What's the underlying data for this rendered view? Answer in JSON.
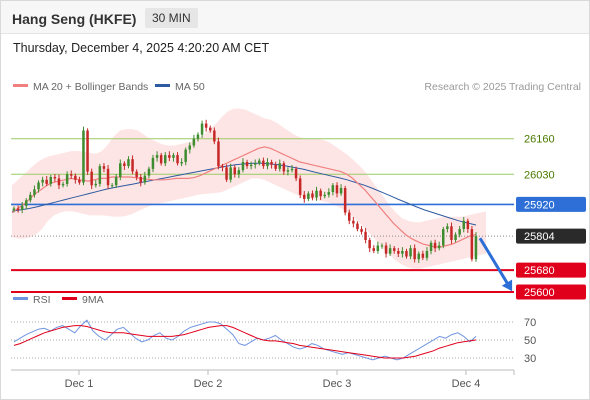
{
  "header": {
    "title": "Hang Seng (HKFE)",
    "timeframe": "30 MIN"
  },
  "datetime": "Thursday, December 4, 2025 4:20:20 AM CET",
  "legend": {
    "ma20_label": "MA 20 + Bollinger Bands",
    "ma50_label": "MA 50",
    "source": "Research © 2025 Trading Central",
    "rsi_label": "RSI",
    "rsi9_label": "9MA"
  },
  "colors": {
    "ma20": "#f08080",
    "ma50": "#2d5aa0",
    "band": "#fde1e1",
    "up": "#3d8c2f",
    "down": "#c62828",
    "pivot": "#2d6fd6",
    "resistance": "#9ccc65",
    "support": "#e0001b",
    "current": "#2a2a2a",
    "arrow": "#2d6fd6",
    "rsi": "#6f95e0",
    "rsi9": "#e0001b"
  },
  "chart_data": [
    {
      "type": "candlestick",
      "title": "Hang Seng (HKFE)",
      "timeframe": "30 MIN",
      "x_ticks": [
        "Dec 1",
        "Dec 2",
        "Dec 3",
        "Dec 4"
      ],
      "ylim": [
        25560,
        26210
      ],
      "levels": {
        "resistance": [
          26160,
          26030
        ],
        "pivot": 25920,
        "support": [
          25680,
          25600
        ],
        "last_price": 25804
      },
      "level_labels": {
        "r2": "26160",
        "r1": "26030",
        "pivot": "25920",
        "last": "25804",
        "s1": "25680",
        "s2": "25600"
      },
      "closes": [
        25905,
        25900,
        25915,
        25935,
        25955,
        25975,
        26000,
        26010,
        25995,
        26020,
        26015,
        25990,
        25995,
        26030,
        26025,
        26010,
        26000,
        26190,
        26040,
        25990,
        25995,
        26060,
        26050,
        25990,
        25990,
        26020,
        26070,
        26060,
        26085,
        26040,
        26020,
        26000,
        26025,
        26050,
        26090,
        26100,
        26070,
        26100,
        26090,
        26100,
        26070,
        26075,
        26120,
        26135,
        26160,
        26175,
        26215,
        26200,
        26190,
        26150,
        26060,
        26055,
        26010,
        26055,
        26030,
        26045,
        26075,
        26060,
        26065,
        26070,
        26080,
        26060,
        26075,
        26065,
        26050,
        26070,
        26040,
        26045,
        26050,
        26015,
        25955,
        25940,
        25960,
        25945,
        25970,
        25950,
        25955,
        25965,
        25990,
        25960,
        25980,
        25890,
        25860,
        25850,
        25830,
        25820,
        25790,
        25760,
        25750,
        25770,
        25770,
        25740,
        25760,
        25750,
        25740,
        25750,
        25730,
        25760,
        25720,
        25740,
        25725,
        25750,
        25780,
        25760,
        25770,
        25830,
        25840,
        25790,
        25810,
        25830,
        25860,
        25830,
        25720,
        25805
      ],
      "ma20": [
        25890,
        25905,
        25920,
        25940,
        25960,
        25975,
        25990,
        26000,
        26005,
        26010,
        26015,
        26012,
        26008,
        26005,
        26010,
        26015,
        26015,
        26020,
        26020,
        26020,
        26020,
        26018,
        26015,
        26012,
        26010,
        26010,
        26010,
        26012,
        26015,
        26015,
        26015,
        26018,
        26025,
        26035,
        26045,
        26055,
        26065,
        26075,
        26085,
        26095,
        26105,
        26115,
        26125,
        26130,
        26125,
        26115,
        26105,
        26095,
        26085,
        26075,
        26070,
        26065,
        26060,
        26055,
        26050,
        26045,
        26040,
        26030,
        26015,
        25995,
        25975,
        25950,
        25925,
        25900,
        25875,
        25850,
        25830,
        25810,
        25795,
        25785,
        25775,
        25770,
        25765,
        25765,
        25770,
        25775,
        25785,
        25795,
        25805,
        25810
      ],
      "bb_upper": [
        25990,
        26010,
        26030,
        26050,
        26070,
        26085,
        26095,
        26100,
        26105,
        26110,
        26115,
        26115,
        26112,
        26108,
        26105,
        26115,
        26140,
        26170,
        26190,
        26195,
        26195,
        26190,
        26175,
        26160,
        26150,
        26140,
        26135,
        26135,
        26140,
        26145,
        26150,
        26160,
        26175,
        26195,
        26215,
        26240,
        26260,
        26270,
        26270,
        26265,
        26255,
        26245,
        26235,
        26230,
        26220,
        26205,
        26190,
        26175,
        26165,
        26160,
        26160,
        26160,
        26155,
        26145,
        26130,
        26115,
        26100,
        26080,
        26060,
        26035,
        26005,
        25975,
        25945,
        25915,
        25890,
        25870,
        25860,
        25855,
        25855,
        25860,
        25865,
        25870,
        25875,
        25875,
        25875,
        25875,
        25880,
        25885,
        25890,
        25895
      ],
      "bb_lower": [
        25800,
        25795,
        25795,
        25800,
        25810,
        25830,
        25860,
        25880,
        25890,
        25895,
        25895,
        25890,
        25885,
        25880,
        25880,
        25880,
        25878,
        25875,
        25875,
        25878,
        25885,
        25895,
        25905,
        25915,
        25920,
        25925,
        25930,
        25935,
        25940,
        25945,
        25950,
        25955,
        25958,
        25960,
        25962,
        25965,
        25975,
        25985,
        25995,
        26005,
        26015,
        26015,
        26010,
        26000,
        25990,
        25980,
        25970,
        25960,
        25950,
        25945,
        25940,
        25935,
        25930,
        25925,
        25915,
        25905,
        25890,
        25870,
        25850,
        25830,
        25805,
        25780,
        25755,
        25735,
        25715,
        25700,
        25690,
        25685,
        25685,
        25690,
        25695,
        25700,
        25705,
        25710,
        25715,
        25720,
        25725,
        25730,
        25735,
        25740
      ],
      "ma50": [
        25895,
        25900,
        25905,
        25912,
        25920,
        25928,
        25936,
        25944,
        25952,
        25960,
        25968,
        25976,
        25982,
        25988,
        25994,
        26000,
        26006,
        26012,
        26018,
        26024,
        26030,
        26036,
        26042,
        26048,
        26054,
        26060,
        26065,
        26068,
        26070,
        26070,
        26068,
        26065,
        26060,
        26054,
        26048,
        26040,
        26032,
        26025,
        26018,
        26010,
        26000,
        25990,
        25978,
        25965,
        25952,
        25938,
        25925,
        25912,
        25900,
        25890,
        25880,
        25870,
        25860,
        25852,
        25845
      ],
      "rsi_ylim": [
        20,
        80
      ],
      "rsi_ticks": [
        70,
        50,
        30
      ],
      "rsi": [
        48,
        52,
        56,
        59,
        62,
        63,
        60,
        64,
        66,
        62,
        58,
        66,
        72,
        60,
        54,
        50,
        56,
        62,
        64,
        58,
        52,
        48,
        50,
        55,
        58,
        52,
        50,
        54,
        60,
        64,
        66,
        68,
        70,
        70,
        68,
        62,
        56,
        46,
        44,
        48,
        52,
        50,
        52,
        55,
        50,
        46,
        42,
        40,
        42,
        46,
        44,
        40,
        38,
        36,
        34,
        36,
        34,
        32,
        30,
        28,
        30,
        32,
        30,
        28,
        30,
        34,
        38,
        42,
        46,
        50,
        54,
        52,
        56,
        58,
        54,
        48,
        54
      ],
      "rsi9": [
        44,
        46,
        49,
        52,
        55,
        58,
        60,
        62,
        64,
        65,
        66,
        66,
        65,
        63,
        61,
        59,
        58,
        58,
        58,
        57,
        56,
        55,
        54,
        54,
        54,
        54,
        54,
        55,
        56,
        58,
        60,
        62,
        64,
        65,
        66,
        66,
        64,
        61,
        58,
        55,
        52,
        50,
        49,
        49,
        48,
        47,
        46,
        44,
        43,
        42,
        41,
        40,
        39,
        38,
        37,
        36,
        35,
        34,
        33,
        32,
        31,
        30,
        30,
        30,
        30,
        31,
        32,
        34,
        36,
        38,
        41,
        43,
        45,
        47,
        48,
        49,
        50
      ]
    }
  ]
}
